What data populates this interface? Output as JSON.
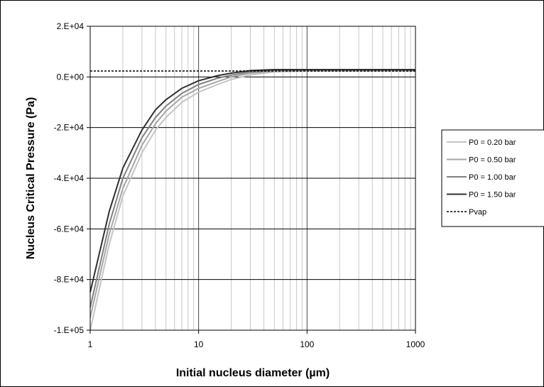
{
  "chart_data": {
    "type": "line",
    "title": "",
    "xlabel": "Initial nucleus diameter (µm)",
    "ylabel": "Nucleus Critical Pressure (Pa)",
    "x_scale": "log",
    "xlim": [
      1,
      1000
    ],
    "ylim": [
      -100000,
      20000
    ],
    "x_ticks": [
      1,
      10,
      100,
      1000
    ],
    "x_tick_labels": [
      "1",
      "10",
      "100",
      "1000"
    ],
    "y_ticks": [
      20000,
      0,
      -20000,
      -40000,
      -60000,
      -80000,
      -100000
    ],
    "y_tick_labels": [
      "2.E+04",
      "0.E+00",
      "-2.E+04",
      "-4.E+04",
      "-6.E+04",
      "-8.E+04",
      "-1.E+05"
    ],
    "grid": true,
    "legend_position": "right",
    "x": [
      1,
      1.5,
      2,
      3,
      4,
      5,
      7,
      10,
      15,
      20,
      30,
      50,
      100,
      200,
      500,
      1000
    ],
    "series": [
      {
        "name": "P0 = 0.20 bar",
        "color": "#c4c4c4",
        "dash": "solid",
        "values": [
          -100000,
          -66000,
          -47000,
          -30000,
          -21000,
          -16000,
          -10000,
          -6000,
          -3000,
          -1000,
          800,
          2000,
          2300,
          2300,
          2300,
          2300
        ]
      },
      {
        "name": "P0 = 0.50 bar",
        "color": "#a6a6a6",
        "dash": "solid",
        "values": [
          -95000,
          -62000,
          -44000,
          -27000,
          -18500,
          -13500,
          -8000,
          -4500,
          -1800,
          0,
          1500,
          2300,
          2500,
          2500,
          2500,
          2500
        ]
      },
      {
        "name": "P0 = 1.00 bar",
        "color": "#808080",
        "dash": "solid",
        "values": [
          -91000,
          -58000,
          -40000,
          -24000,
          -16000,
          -11500,
          -6500,
          -3000,
          -500,
          700,
          2000,
          2600,
          2700,
          2700,
          2700,
          2700
        ]
      },
      {
        "name": "P0 = 1.50 bar",
        "color": "#303030",
        "dash": "solid",
        "values": [
          -85000,
          -53000,
          -36000,
          -21000,
          -13000,
          -9000,
          -4500,
          -1500,
          500,
          1500,
          2500,
          2900,
          2900,
          2900,
          2900,
          2900
        ]
      },
      {
        "name": "Pvap",
        "color": "#000000",
        "dash": "dotted",
        "values": [
          2340,
          2340,
          2340,
          2340,
          2340,
          2340,
          2340,
          2340,
          2340,
          2340,
          2340,
          2340,
          2340,
          2340,
          2340,
          2340
        ]
      }
    ]
  }
}
